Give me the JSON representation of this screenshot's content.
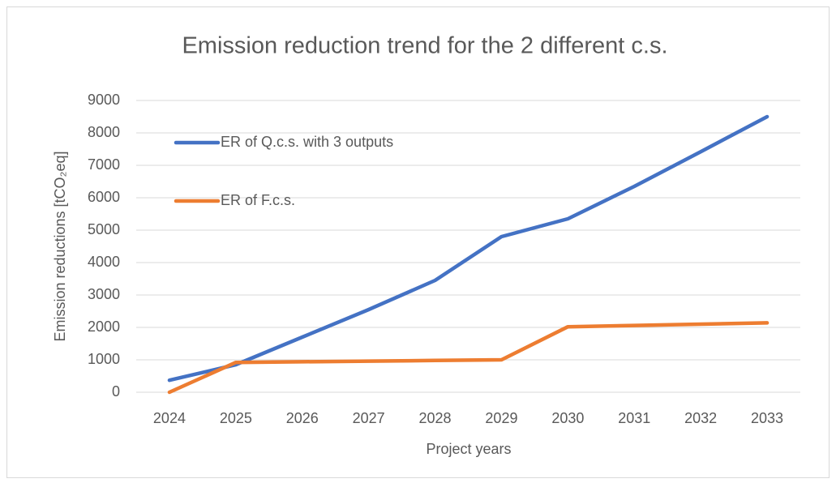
{
  "chart_data": {
    "type": "line",
    "title": "Emission reduction trend for the 2 different c.s.",
    "x_label": "Project years",
    "y_label": "Emission reductions [tCO₂eq]",
    "categories": [
      "2024",
      "2025",
      "2026",
      "2027",
      "2028",
      "2029",
      "2030",
      "2031",
      "2032",
      "2033"
    ],
    "series": [
      {
        "name": "ER of Q.c.s. with 3 outputs",
        "color": "#4472c4",
        "values": [
          370,
          850,
          1700,
          2550,
          3450,
          4800,
          5350,
          6350,
          7420,
          8500
        ]
      },
      {
        "name": "ER of F.c.s.",
        "color": "#ed7d31",
        "values": [
          0,
          920,
          940,
          960,
          980,
          1000,
          2020,
          2060,
          2100,
          2140
        ]
      }
    ],
    "ylim": [
      0,
      9000
    ],
    "yticks": [
      0,
      1000,
      2000,
      3000,
      4000,
      5000,
      6000,
      7000,
      8000,
      9000
    ],
    "grid": true
  }
}
